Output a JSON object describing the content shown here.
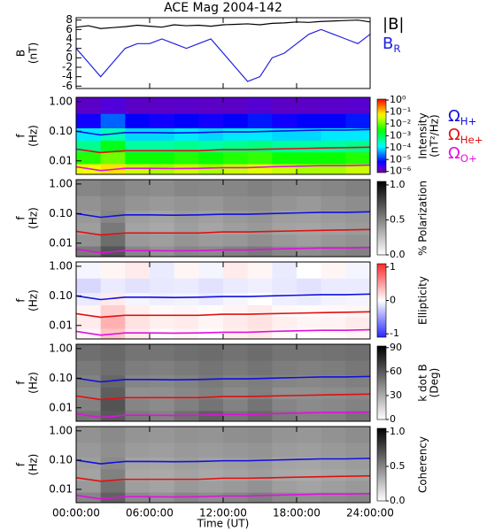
{
  "chart_data": [
    {
      "type": "line",
      "title": "ACE Mag 2004-142",
      "ylabel": [
        "B",
        "(nT)"
      ],
      "x": [
        0,
        1,
        2,
        3,
        4,
        5,
        6,
        7,
        8,
        9,
        10,
        11,
        12,
        13,
        14,
        15,
        16,
        17,
        18,
        19,
        20,
        21,
        22,
        23,
        24
      ],
      "xlim": [
        0,
        24
      ],
      "ylim": [
        -6.5,
        8.5
      ],
      "yticks": [
        -6,
        -4,
        -2,
        0,
        2,
        4,
        6,
        8
      ],
      "series": [
        {
          "name": "|B|",
          "color": "#000000",
          "values": [
            6.5,
            6.8,
            6.2,
            6.4,
            6.6,
            6.9,
            6.7,
            6.5,
            7.0,
            6.8,
            6.9,
            6.7,
            7.0,
            7.1,
            7.2,
            7.0,
            7.3,
            7.4,
            7.6,
            7.5,
            7.7,
            7.8,
            7.9,
            8.0,
            7.6
          ]
        },
        {
          "name": "B",
          "name_sub": "R",
          "color": "#2020e0",
          "values": [
            2,
            -1,
            -4,
            -1,
            2,
            3,
            3,
            4,
            3,
            2,
            3,
            4,
            1,
            -2,
            -5,
            -4,
            0,
            1,
            3,
            5,
            6,
            5,
            4,
            3,
            5
          ]
        }
      ]
    },
    {
      "type": "heatmap",
      "ylabel": [
        "f",
        "(Hz)"
      ],
      "colorbar_label": [
        "Intensity",
        "(nT²/Hz)"
      ],
      "colormap": "rainbow",
      "zscale": "log",
      "xlim": [
        0,
        24
      ],
      "ylim": [
        0.0035,
        1.4
      ],
      "yscale": "log",
      "yticks": [
        0.01,
        {
          "value": 0.1,
          "label": "0.10"
        },
        {
          "value": 1,
          "label": "1.00"
        }
      ],
      "zlim": [
        8e-07,
        1.2
      ],
      "zticks": [
        {
          "value": 1,
          "label": "10⁰"
        },
        {
          "value": 0.1,
          "label": "10⁻¹"
        },
        {
          "value": 0.01,
          "label": "10⁻²"
        },
        {
          "value": 0.001,
          "label": "10⁻³"
        },
        {
          "value": 0.0001,
          "label": "10⁻⁴"
        },
        {
          "value": 1e-05,
          "label": "10⁻⁵"
        },
        {
          "value": 1e-06,
          "label": "10⁻⁶"
        }
      ],
      "x_edges": [
        0,
        2,
        4,
        6,
        8,
        10,
        12,
        14,
        16,
        18,
        20,
        22,
        24
      ],
      "y_edges": [
        0.0035,
        0.008,
        0.02,
        0.05,
        0.13,
        0.4,
        1.4
      ],
      "z": [
        [
          0.05,
          0.08,
          0.03,
          0.02,
          0.03,
          0.02,
          0.03,
          0.04,
          0.03,
          0.02,
          0.02,
          0.03
        ],
        [
          0.004,
          0.01,
          0.003,
          0.003,
          0.004,
          0.003,
          0.004,
          0.005,
          0.003,
          0.003,
          0.003,
          0.004
        ],
        [
          0.0005,
          0.002,
          0.0004,
          0.0004,
          0.0005,
          0.0004,
          0.0005,
          0.0006,
          0.0004,
          0.0004,
          0.0004,
          0.0005
        ],
        [
          0.0001,
          0.0003,
          8e-05,
          8e-05,
          0.0001,
          8e-05,
          0.0001,
          0.0001,
          8e-05,
          8e-05,
          0.0001,
          0.0001
        ],
        [
          5e-06,
          2e-05,
          6e-06,
          5e-06,
          6e-06,
          5e-06,
          6e-06,
          8e-06,
          5e-06,
          6e-06,
          6e-06,
          8e-06
        ],
        [
          1.5e-06,
          2e-06,
          1.5e-06,
          1.5e-06,
          1.6e-06,
          1.5e-06,
          1.5e-06,
          1.8e-06,
          1.5e-06,
          1.5e-06,
          1.6e-06,
          1.7e-06
        ]
      ],
      "x": [
        0,
        2,
        4,
        6,
        8,
        10,
        12,
        14,
        16,
        18,
        20,
        22,
        24
      ],
      "series": [
        {
          "name": "Ω",
          "name_sub": "H+",
          "color": "#1010e0",
          "values": [
            0.1,
            0.075,
            0.09,
            0.09,
            0.088,
            0.09,
            0.095,
            0.095,
            0.1,
            0.105,
            0.11,
            0.11,
            0.115
          ]
        },
        {
          "name": "Ω",
          "name_sub": "He+",
          "color": "#e01010",
          "values": [
            0.025,
            0.019,
            0.022,
            0.022,
            0.022,
            0.022,
            0.024,
            0.024,
            0.025,
            0.026,
            0.027,
            0.028,
            0.029
          ]
        },
        {
          "name": "Ω",
          "name_sub": "O+",
          "color": "#e010e0",
          "values": [
            0.0063,
            0.0047,
            0.0056,
            0.0056,
            0.0055,
            0.0056,
            0.0059,
            0.0059,
            0.0063,
            0.0066,
            0.0069,
            0.0069,
            0.0072
          ]
        }
      ]
    },
    {
      "type": "heatmap",
      "ylabel": [
        "f",
        "(Hz)"
      ],
      "colorbar_label": [
        "% Polarization"
      ],
      "colormap": "gray",
      "xlim": [
        0,
        24
      ],
      "ylim": [
        0.0035,
        1.4
      ],
      "yscale": "log",
      "yticks": [
        0.01,
        {
          "value": 0.1,
          "label": "0.10"
        },
        {
          "value": 1,
          "label": "1.00"
        }
      ],
      "zlim": [
        0,
        1.05
      ],
      "zticks": [
        {
          "value": 0,
          "label": "0.0"
        },
        0.5,
        {
          "value": 1,
          "label": "1.0"
        }
      ],
      "x_edges": [
        0,
        2,
        4,
        6,
        8,
        10,
        12,
        14,
        16,
        18,
        20,
        22,
        24
      ],
      "y_edges": [
        0.0035,
        0.008,
        0.02,
        0.05,
        0.13,
        0.4,
        1.4
      ],
      "z": [
        [
          0.55,
          0.7,
          0.5,
          0.45,
          0.5,
          0.48,
          0.52,
          0.55,
          0.5,
          0.47,
          0.5,
          0.52
        ],
        [
          0.45,
          0.6,
          0.42,
          0.4,
          0.44,
          0.41,
          0.43,
          0.46,
          0.42,
          0.4,
          0.43,
          0.45
        ],
        [
          0.4,
          0.55,
          0.38,
          0.36,
          0.4,
          0.37,
          0.4,
          0.42,
          0.38,
          0.37,
          0.39,
          0.41
        ],
        [
          0.42,
          0.5,
          0.4,
          0.38,
          0.41,
          0.39,
          0.42,
          0.44,
          0.4,
          0.39,
          0.41,
          0.43
        ],
        [
          0.45,
          0.48,
          0.44,
          0.42,
          0.44,
          0.43,
          0.46,
          0.47,
          0.44,
          0.42,
          0.45,
          0.47
        ],
        [
          0.5,
          0.52,
          0.48,
          0.47,
          0.5,
          0.49,
          0.5,
          0.52,
          0.49,
          0.48,
          0.5,
          0.52
        ]
      ]
    },
    {
      "type": "heatmap",
      "ylabel": [
        "f",
        "(Hz)"
      ],
      "colorbar_label": [
        "Ellipticity"
      ],
      "colormap": "bwr",
      "xlim": [
        0,
        24
      ],
      "ylim": [
        0.0035,
        1.4
      ],
      "yscale": "log",
      "yticks": [
        0.01,
        {
          "value": 0.1,
          "label": "0.10"
        },
        {
          "value": 1,
          "label": "1.00"
        }
      ],
      "zlim": [
        -1.1,
        1.1
      ],
      "zticks": [
        -1,
        0,
        1
      ],
      "x_edges": [
        0,
        2,
        4,
        6,
        8,
        10,
        12,
        14,
        16,
        18,
        20,
        22,
        24
      ],
      "y_edges": [
        0.0035,
        0.008,
        0.02,
        0.05,
        0.13,
        0.4,
        1.4
      ],
      "z": [
        [
          0.05,
          0.3,
          0.1,
          0.02,
          0.05,
          0.0,
          0.08,
          0.12,
          0.03,
          0.0,
          0.02,
          0.05
        ],
        [
          0.1,
          0.4,
          0.15,
          0.08,
          0.1,
          0.05,
          0.1,
          0.15,
          0.08,
          0.05,
          0.06,
          0.1
        ],
        [
          0.05,
          0.25,
          0.08,
          0.03,
          0.04,
          0.02,
          0.06,
          0.1,
          0.03,
          0.02,
          0.03,
          0.05
        ],
        [
          -0.1,
          0.1,
          -0.05,
          -0.08,
          -0.06,
          -0.1,
          -0.05,
          0.0,
          -0.08,
          -0.1,
          -0.06,
          -0.05
        ],
        [
          -0.2,
          -0.1,
          -0.15,
          -0.12,
          -0.1,
          -0.15,
          -0.1,
          -0.08,
          -0.12,
          -0.15,
          -0.1,
          -0.1
        ],
        [
          -0.05,
          0.05,
          0.1,
          -0.1,
          0.05,
          -0.05,
          0.1,
          0.05,
          -0.1,
          0.0,
          0.05,
          -0.05
        ]
      ]
    },
    {
      "type": "heatmap",
      "ylabel": [
        "f",
        "(Hz)"
      ],
      "colorbar_label": [
        "k dot B",
        "(Deg)"
      ],
      "colormap": "gray",
      "xlim": [
        0,
        24
      ],
      "ylim": [
        0.0035,
        1.4
      ],
      "yscale": "log",
      "yticks": [
        0.01,
        {
          "value": 0.1,
          "label": "0.10"
        },
        {
          "value": 1,
          "label": "1.00"
        }
      ],
      "zlim": [
        0,
        92
      ],
      "zticks": [
        0,
        30,
        60,
        90
      ],
      "x_edges": [
        0,
        2,
        4,
        6,
        8,
        10,
        12,
        14,
        16,
        18,
        20,
        22,
        24
      ],
      "y_edges": [
        0.0035,
        0.008,
        0.02,
        0.05,
        0.13,
        0.4,
        1.4
      ],
      "z": [
        [
          50,
          60,
          48,
          45,
          52,
          58,
          50,
          55,
          48,
          45,
          46,
          50
        ],
        [
          45,
          62,
          44,
          42,
          46,
          50,
          45,
          50,
          44,
          42,
          43,
          45
        ],
        [
          42,
          58,
          40,
          40,
          43,
          46,
          42,
          46,
          40,
          40,
          41,
          43
        ],
        [
          45,
          55,
          44,
          43,
          45,
          48,
          45,
          47,
          44,
          43,
          44,
          46
        ],
        [
          48,
          52,
          47,
          46,
          48,
          50,
          48,
          50,
          47,
          46,
          47,
          49
        ],
        [
          52,
          54,
          50,
          50,
          52,
          53,
          51,
          53,
          50,
          50,
          51,
          52
        ]
      ]
    },
    {
      "type": "heatmap",
      "ylabel": [
        "f",
        "(Hz)"
      ],
      "colorbar_label": [
        "Coherency"
      ],
      "colormap": "gray",
      "xlim": [
        0,
        24
      ],
      "ylim": [
        0.0035,
        1.4
      ],
      "yscale": "log",
      "yticks": [
        0.01,
        {
          "value": 0.1,
          "label": "0.10"
        },
        {
          "value": 1,
          "label": "1.00"
        }
      ],
      "zlim": [
        0,
        1.05
      ],
      "zticks": [
        {
          "value": 0,
          "label": "0.0"
        },
        0.5,
        {
          "value": 1,
          "label": "1.0"
        }
      ],
      "x_edges": [
        0,
        2,
        4,
        6,
        8,
        10,
        12,
        14,
        16,
        18,
        20,
        22,
        24
      ],
      "y_edges": [
        0.0035,
        0.008,
        0.02,
        0.05,
        0.13,
        0.4,
        1.4
      ],
      "z": [
        [
          0.5,
          0.65,
          0.48,
          0.45,
          0.5,
          0.47,
          0.5,
          0.53,
          0.48,
          0.46,
          0.48,
          0.5
        ],
        [
          0.42,
          0.58,
          0.4,
          0.38,
          0.42,
          0.4,
          0.42,
          0.45,
          0.4,
          0.38,
          0.4,
          0.42
        ],
        [
          0.38,
          0.52,
          0.36,
          0.35,
          0.38,
          0.36,
          0.38,
          0.4,
          0.36,
          0.35,
          0.37,
          0.39
        ],
        [
          0.4,
          0.48,
          0.38,
          0.37,
          0.4,
          0.38,
          0.4,
          0.42,
          0.38,
          0.37,
          0.39,
          0.41
        ],
        [
          0.42,
          0.46,
          0.41,
          0.4,
          0.42,
          0.41,
          0.43,
          0.44,
          0.41,
          0.4,
          0.42,
          0.44
        ],
        [
          0.45,
          0.48,
          0.44,
          0.43,
          0.45,
          0.44,
          0.46,
          0.47,
          0.44,
          0.43,
          0.45,
          0.47
        ]
      ],
      "xlabel": "Time (UT)",
      "xticks": [
        {
          "value": 0,
          "label": "00:00:00"
        },
        {
          "value": 6,
          "label": "06:00:00"
        },
        {
          "value": 12,
          "label": "12:00:00"
        },
        {
          "value": 18,
          "label": "18:00:00"
        },
        {
          "value": 24,
          "label": "24:00:00"
        }
      ]
    }
  ]
}
